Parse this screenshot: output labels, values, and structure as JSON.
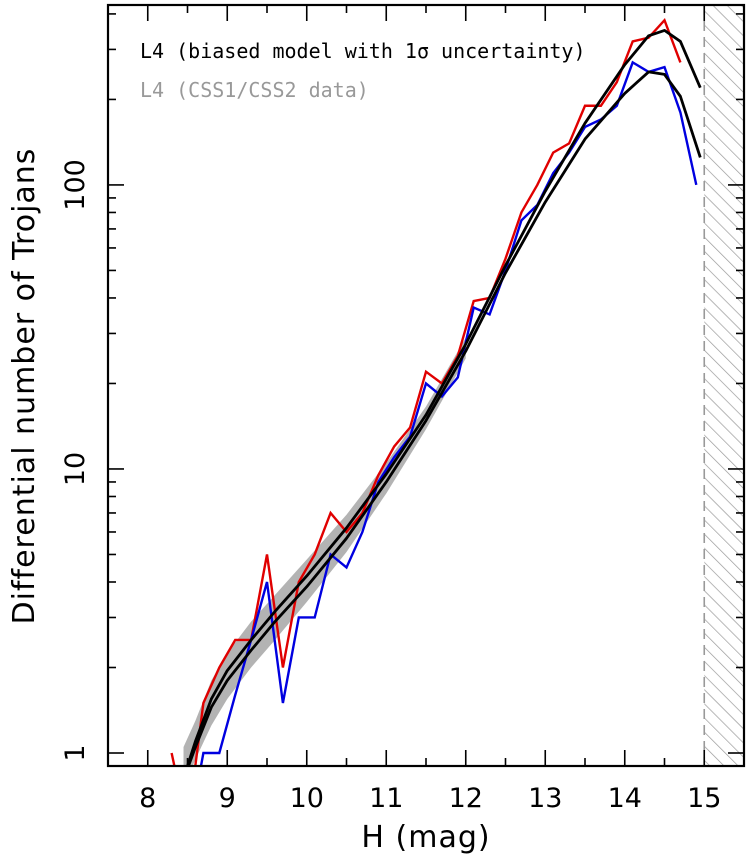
{
  "chart_data": {
    "type": "line",
    "xlabel": "H (mag)",
    "ylabel": "Differential number of Trojans",
    "xlim": [
      7.5,
      15.5
    ],
    "ylim": [
      0.9,
      430
    ],
    "yscale": "log",
    "x_ticks": [
      "8",
      "9",
      "10",
      "11",
      "12",
      "13",
      "14",
      "15"
    ],
    "y_ticks": [
      "1",
      "10",
      "100"
    ],
    "legend": {
      "placement": "top-left",
      "entries": [
        {
          "label": "L4 (biased model with 1σ uncertainty)",
          "color": "#000000"
        },
        {
          "label": "L4 (CSS1/CSS2 data)",
          "color": "#999999"
        }
      ]
    },
    "excluded_region": {
      "x_from": 15.0,
      "x_to": 15.5,
      "style": "hatched"
    },
    "colors": {
      "data_red": "#e00000",
      "data_blue": "#0000e0",
      "model": "#000000",
      "band": "#b3b3b3",
      "hatch": "#999999"
    },
    "series": [
      {
        "role": "data-red",
        "x": [
          8.3,
          8.5,
          8.7,
          8.9,
          9.1,
          9.3,
          9.5,
          9.7,
          9.9,
          10.1,
          10.3,
          10.5,
          10.7,
          10.9,
          11.1,
          11.3,
          11.5,
          11.7,
          11.9,
          12.1,
          12.3,
          12.5,
          12.7,
          12.9,
          13.1,
          13.3,
          13.5,
          13.7,
          13.9,
          14.1,
          14.3,
          14.5,
          14.7
        ],
        "y": [
          1,
          0.55,
          1.5,
          2.0,
          2.5,
          2.5,
          5.0,
          2.0,
          4.0,
          5.0,
          7.0,
          6.0,
          7.0,
          9.5,
          12.0,
          14.0,
          22.0,
          20.0,
          25.0,
          39.0,
          40.0,
          55.0,
          80.0,
          100.0,
          130.0,
          140.0,
          190.0,
          190.0,
          230.0,
          320.0,
          330.0,
          380.0,
          270.0
        ]
      },
      {
        "role": "data-blue",
        "x": [
          8.5,
          8.7,
          8.9,
          9.1,
          9.3,
          9.5,
          9.7,
          9.9,
          10.1,
          10.3,
          10.5,
          10.7,
          10.9,
          11.1,
          11.3,
          11.5,
          11.7,
          11.9,
          12.1,
          12.3,
          12.5,
          12.7,
          12.9,
          13.1,
          13.3,
          13.5,
          13.7,
          13.9,
          14.1,
          14.3,
          14.5,
          14.7,
          14.9
        ],
        "y": [
          0.5,
          1.0,
          1.0,
          1.6,
          2.5,
          4.0,
          1.5,
          3.0,
          3.0,
          5.0,
          4.5,
          6.0,
          9.0,
          11.0,
          13.0,
          20.0,
          18.0,
          21.0,
          37.0,
          35.0,
          50.0,
          75.0,
          85.0,
          110.0,
          130.0,
          160.0,
          170.0,
          190.0,
          270.0,
          250.0,
          260.0,
          180.0,
          100.0
        ]
      },
      {
        "role": "model-upper",
        "x": [
          8.5,
          8.6,
          8.8,
          9.0,
          9.3,
          9.6,
          10.0,
          10.5,
          11.0,
          11.5,
          12.0,
          12.5,
          13.0,
          13.5,
          14.0,
          14.3,
          14.5,
          14.7,
          14.95
        ],
        "y": [
          0.9,
          1.1,
          1.55,
          1.95,
          2.5,
          3.15,
          4.2,
          6.2,
          9.6,
          15.5,
          27.5,
          52.0,
          95.0,
          165.0,
          265.0,
          335.0,
          350.0,
          320.0,
          220.0
        ]
      },
      {
        "role": "model-lower",
        "x": [
          8.5,
          8.6,
          8.8,
          9.0,
          9.3,
          9.6,
          10.0,
          10.5,
          11.0,
          11.5,
          12.0,
          12.5,
          13.0,
          13.5,
          14.0,
          14.3,
          14.5,
          14.7,
          14.95
        ],
        "y": [
          0.88,
          1.05,
          1.45,
          1.8,
          2.3,
          2.9,
          3.85,
          5.7,
          9.0,
          14.8,
          26.0,
          49.0,
          87.0,
          145.0,
          210.0,
          250.0,
          245.0,
          205.0,
          125.0
        ]
      },
      {
        "role": "uncertainty-band",
        "x": [
          8.45,
          8.6,
          8.8,
          9.0,
          9.3,
          9.6,
          10.0,
          10.5,
          11.0,
          11.5,
          12.0
        ],
        "y_low": [
          0.75,
          0.95,
          1.25,
          1.55,
          2.0,
          2.5,
          3.4,
          5.1,
          8.2,
          13.8,
          24.5
        ],
        "y_high": [
          1.05,
          1.3,
          1.8,
          2.25,
          2.9,
          3.6,
          4.8,
          6.9,
          10.5,
          16.6,
          29.0
        ]
      }
    ]
  }
}
